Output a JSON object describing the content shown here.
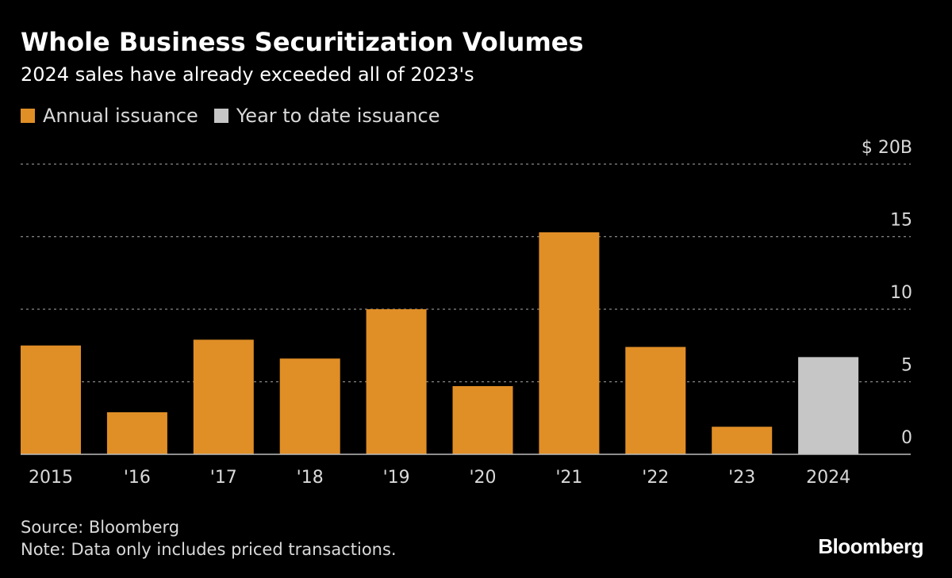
{
  "chart_data": {
    "type": "bar",
    "title": "Whole Business Securitization Volumes",
    "subtitle": "2024 sales have already exceeded all of 2023's",
    "categories": [
      "2015",
      "'16",
      "'17",
      "'18",
      "'19",
      "'20",
      "'21",
      "'22",
      "'23",
      "2024"
    ],
    "values": [
      7.5,
      2.9,
      7.9,
      6.6,
      10.0,
      4.7,
      15.3,
      7.4,
      1.9,
      6.7
    ],
    "bar_legend_keys": [
      "annual",
      "annual",
      "annual",
      "annual",
      "annual",
      "annual",
      "annual",
      "annual",
      "annual",
      "ytd"
    ],
    "legend": [
      {
        "key": "annual",
        "label": "Annual issuance",
        "color": "#E08E26"
      },
      {
        "key": "ytd",
        "label": "Year to date issuance",
        "color": "#C6C6C6"
      }
    ],
    "ylim": [
      0,
      20
    ],
    "yticks": [
      0,
      5,
      10,
      15,
      20
    ],
    "ytick_labels": [
      "0",
      "5",
      "10",
      "15",
      "$ 20B"
    ],
    "grid": true
  },
  "footer": {
    "source": "Source: Bloomberg",
    "note": "Note: Data only includes priced transactions."
  },
  "brand": "Bloomberg"
}
